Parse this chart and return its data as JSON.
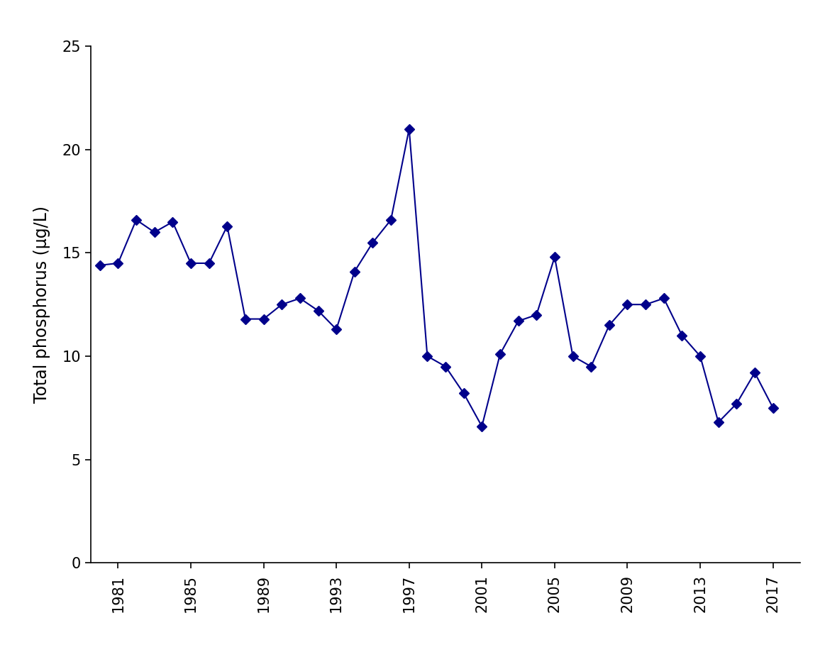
{
  "years": [
    1980,
    1981,
    1982,
    1983,
    1984,
    1985,
    1986,
    1987,
    1988,
    1989,
    1990,
    1991,
    1992,
    1993,
    1994,
    1995,
    1996,
    1997,
    1998,
    1999,
    2000,
    2001,
    2002,
    2003,
    2004,
    2005,
    2006,
    2007,
    2008,
    2009,
    2010,
    2011,
    2012,
    2013,
    2014,
    2015,
    2016,
    2017
  ],
  "values": [
    14.4,
    14.5,
    16.6,
    16.0,
    16.5,
    14.5,
    14.5,
    16.3,
    11.8,
    11.8,
    12.5,
    12.8,
    12.2,
    11.3,
    14.1,
    15.5,
    16.6,
    21.0,
    10.0,
    9.5,
    8.2,
    6.6,
    10.1,
    11.7,
    12.0,
    14.8,
    10.0,
    9.5,
    11.5,
    12.5,
    12.5,
    12.8,
    11.0,
    10.0,
    6.8,
    7.7,
    9.2,
    7.5
  ],
  "line_color": "#00008B",
  "marker_style": "D",
  "marker_size": 7,
  "linewidth": 1.5,
  "ylabel": "Total phosphorus (μg/L)",
  "xlabel": "",
  "ylim": [
    0,
    25
  ],
  "xlim": [
    1979.5,
    2018.5
  ],
  "yticks": [
    0,
    5,
    10,
    15,
    20,
    25
  ],
  "xticks": [
    1981,
    1985,
    1989,
    1993,
    1997,
    2001,
    2005,
    2009,
    2013,
    2017
  ],
  "title": "",
  "background_color": "#ffffff",
  "ylabel_fontsize": 17,
  "tick_fontsize": 15
}
